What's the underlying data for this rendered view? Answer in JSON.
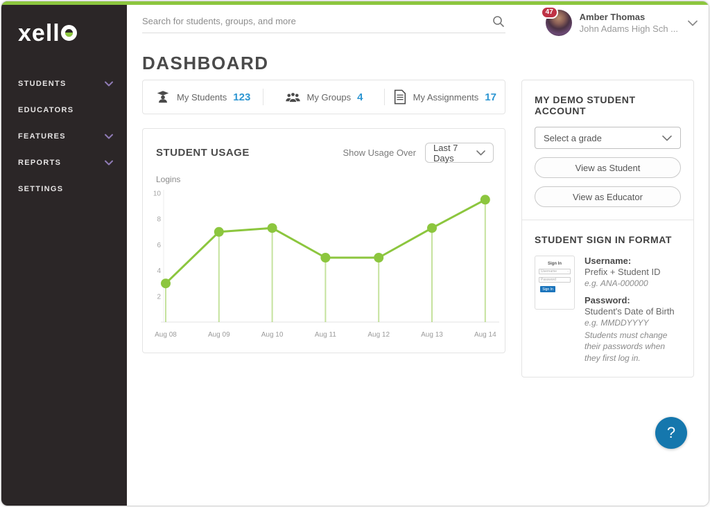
{
  "colors": {
    "brand_green": "#8cc63e",
    "accent_blue": "#2d96d2",
    "help_blue": "#1577ad",
    "badge_red": "#bf3245",
    "sidebar_bg": "#2b2627"
  },
  "sidebar": {
    "logo_text": "xell",
    "items": [
      {
        "label": "STUDENTS",
        "chevron": true
      },
      {
        "label": "EDUCATORS",
        "chevron": false
      },
      {
        "label": "FEATURES",
        "chevron": true
      },
      {
        "label": "REPORTS",
        "chevron": true
      },
      {
        "label": "SETTINGS",
        "chevron": false
      }
    ]
  },
  "topbar": {
    "search_placeholder": "Search for students, groups, and more",
    "user": {
      "name": "Amber Thomas",
      "organization": "John Adams High Sch ...",
      "badge_count": "47"
    }
  },
  "main": {
    "title": "DASHBOARD",
    "stats": [
      {
        "icon": "student-icon",
        "label": "My Students",
        "value": "123"
      },
      {
        "icon": "group-icon",
        "label": "My Groups",
        "value": "4"
      },
      {
        "icon": "assignment-icon",
        "label": "My Assignments",
        "value": "17"
      }
    ]
  },
  "usage_card": {
    "title": "STUDENT USAGE",
    "filter_label": "Show Usage Over",
    "filter_value": "Last 7 Days"
  },
  "chart_data": {
    "type": "line",
    "title": "STUDENT USAGE",
    "ylabel": "Logins",
    "categories": [
      "Aug 08",
      "Aug 09",
      "Aug 10",
      "Aug 11",
      "Aug 12",
      "Aug 13",
      "Aug 14"
    ],
    "values": [
      3,
      7,
      7.3,
      5,
      5,
      7.3,
      9.5
    ],
    "yticks": [
      2,
      4,
      6,
      8,
      10
    ],
    "ylim": [
      0,
      10
    ],
    "line_color": "#8cc63e",
    "grid": false,
    "legend": "none"
  },
  "demo_panel": {
    "title": "MY DEMO STUDENT ACCOUNT",
    "grade_select_value": "Select a grade",
    "view_student_label": "View as Student",
    "view_educator_label": "View as Educator"
  },
  "signin_panel": {
    "title": "STUDENT SIGN IN FORMAT",
    "username_label": "Username:",
    "username_value": "Prefix + Student ID",
    "username_example": "e.g. ANA-000000",
    "password_label": "Password:",
    "password_value": "Student's Date of Birth",
    "password_example": "e.g. MMDDYYYY",
    "password_note": "Students must change their passwords when they first log in.",
    "thumbnail": {
      "title": "Sign In",
      "username_placeholder": "Username",
      "password_placeholder": "Password",
      "button_label": "Sign In"
    }
  },
  "help": {
    "label": "?"
  }
}
